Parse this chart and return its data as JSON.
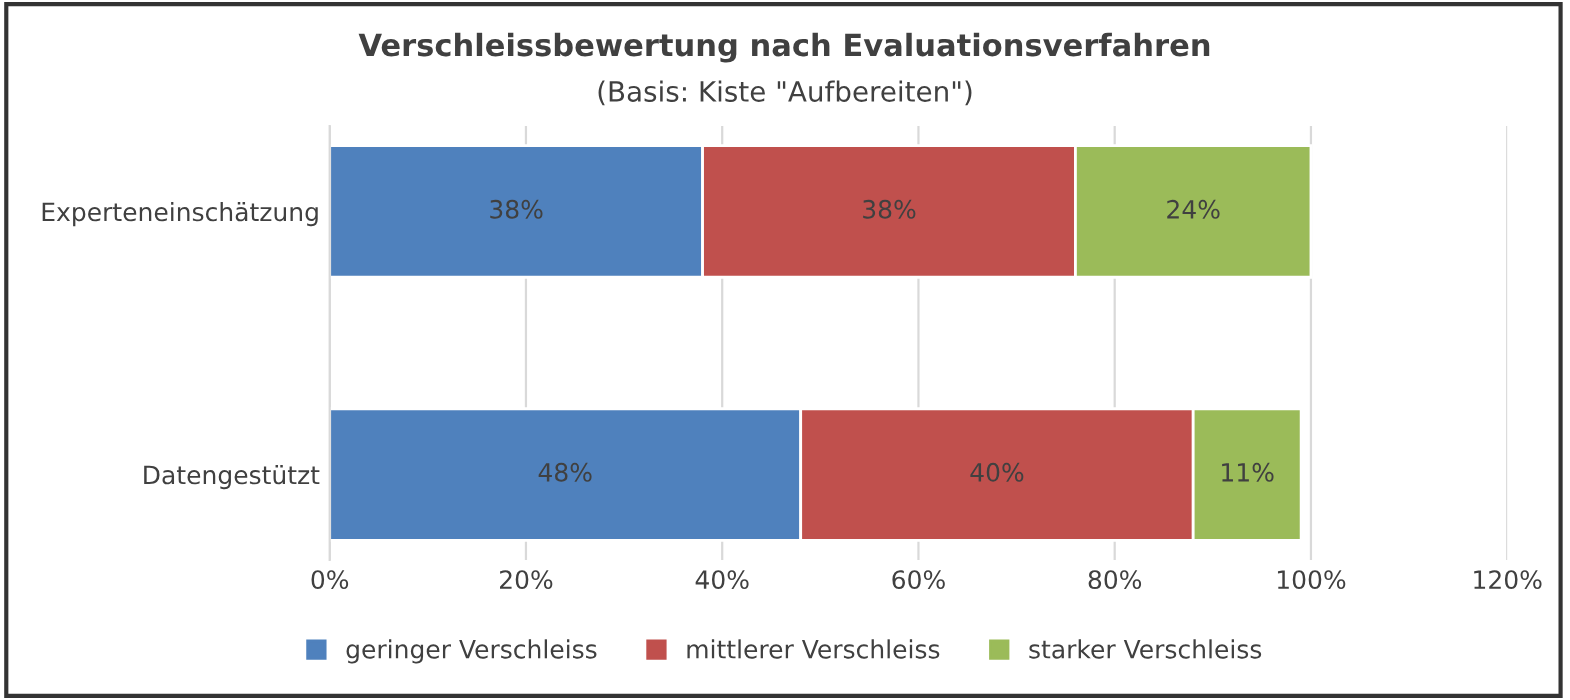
{
  "chart_data": {
    "type": "bar",
    "orientation": "horizontal",
    "stacked": true,
    "title": "Verschleissbewertung nach Evaluationsverfahren",
    "subtitle": "(Basis: Kiste \"Aufbereiten\")",
    "categories": [
      "Experteneinschätzung",
      "Datengestützt"
    ],
    "series": [
      {
        "name": "geringer Verschleiss",
        "color": "#4f81bd",
        "values": [
          38,
          48
        ],
        "value_labels": [
          "38%",
          "48%"
        ]
      },
      {
        "name": "mittlerer Verschleiss",
        "color": "#c0504d",
        "values": [
          38,
          40
        ],
        "value_labels": [
          "38%",
          "40%"
        ]
      },
      {
        "name": "starker Verschleiss",
        "color": "#9bbb59",
        "values": [
          24,
          11
        ],
        "value_labels": [
          "24%",
          "11%"
        ]
      }
    ],
    "xlim": [
      0,
      120
    ],
    "xticks": [
      {
        "value": 0,
        "label": "0%"
      },
      {
        "value": 20,
        "label": "20%"
      },
      {
        "value": 40,
        "label": "40%"
      },
      {
        "value": 60,
        "label": "60%"
      },
      {
        "value": 80,
        "label": "80%"
      },
      {
        "value": 100,
        "label": "100%"
      },
      {
        "value": 120,
        "label": "120%"
      }
    ],
    "grid": "x",
    "legend": "bottom"
  }
}
